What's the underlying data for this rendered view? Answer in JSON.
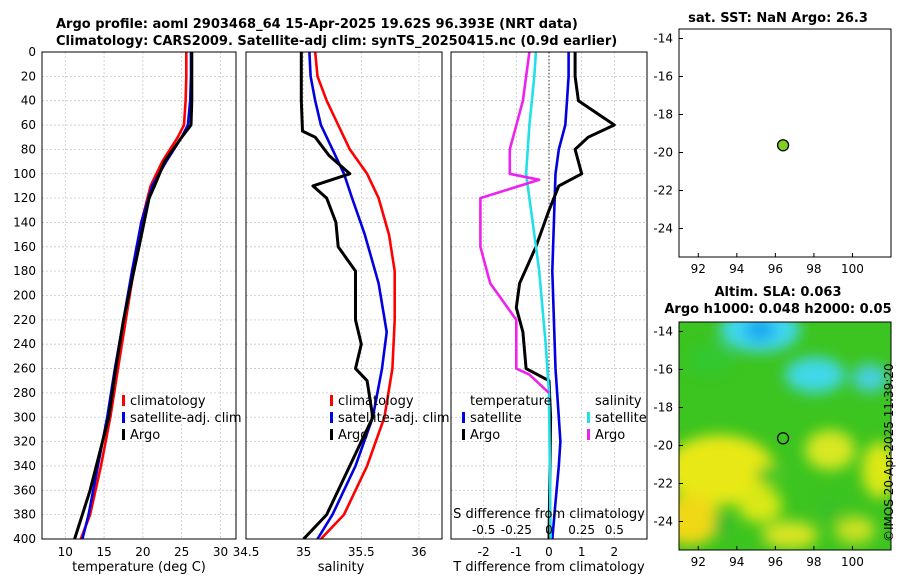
{
  "figure": {
    "title_line1": "Argo profile: aoml 2903468_64 15-Apr-2025 19.62S 96.393E (NRT data)",
    "title_line2": "Climatology: CARS2009. Satellite-adj clim: synTS_20250415.nc (0.9d earlier)",
    "timestamp": "©IMOS 20-Apr-2025 11:39:20"
  },
  "colors": {
    "climatology": "#ff0000",
    "satellite": "#0000e0",
    "argo": "#000000",
    "sal_satellite": "#22e0e8",
    "sal_argo": "#ee22ee",
    "marker": "#80d020",
    "grid": "#c8c8c8"
  },
  "chart_data": [
    {
      "id": "temperature",
      "type": "line",
      "xlabel": "temperature (deg C)",
      "ylabel": "",
      "xlim": [
        7,
        32
      ],
      "xticks": [
        10,
        15,
        20,
        25,
        30
      ],
      "ylim": [
        400,
        0
      ],
      "yticks": [
        0,
        20,
        40,
        60,
        80,
        100,
        120,
        140,
        160,
        180,
        200,
        220,
        240,
        260,
        280,
        300,
        320,
        340,
        360,
        380,
        400
      ],
      "legend": [
        "climatology",
        "satellite-adj. clim",
        "Argo"
      ],
      "series": [
        {
          "name": "climatology",
          "color_key": "climatology",
          "x": [
            25.6,
            25.6,
            25.5,
            25.3,
            24.5,
            22.5,
            21.0,
            19.8,
            18.8,
            17.8,
            16.8,
            15.8,
            14.6,
            13.2,
            12.0
          ],
          "y": [
            0,
            20,
            40,
            60,
            70,
            90,
            110,
            140,
            180,
            220,
            260,
            300,
            340,
            380,
            400
          ]
        },
        {
          "name": "satellite-adj. clim",
          "color_key": "satellite",
          "x": [
            26.2,
            26.2,
            26.1,
            25.8,
            25.0,
            23.0,
            21.2,
            19.8,
            18.6,
            17.5,
            16.4,
            15.4,
            14.2,
            13.0,
            12.2
          ],
          "y": [
            0,
            20,
            40,
            60,
            70,
            90,
            110,
            140,
            180,
            220,
            260,
            300,
            340,
            380,
            400
          ]
        },
        {
          "name": "Argo",
          "color_key": "argo",
          "x": [
            26.3,
            26.3,
            26.3,
            26.2,
            25.0,
            22.8,
            21.5,
            20.8,
            19.5,
            17.5,
            16.5,
            15.6,
            14.8,
            13.2,
            11.2
          ],
          "y": [
            0,
            20,
            40,
            60,
            70,
            90,
            110,
            120,
            160,
            220,
            260,
            300,
            320,
            360,
            400
          ]
        }
      ]
    },
    {
      "id": "salinity",
      "type": "line",
      "xlabel": "salinity",
      "xlim": [
        34.5,
        36.2
      ],
      "xticks": [
        34.5,
        35,
        35.5,
        36
      ],
      "xticklabels": [
        "34.5",
        "35",
        "35.5",
        "36"
      ],
      "ylim": [
        400,
        0
      ],
      "legend": [
        "climatology",
        "satellite-adj. clim",
        "Argo"
      ],
      "series": [
        {
          "name": "climatology",
          "color_key": "climatology",
          "x": [
            35.1,
            35.12,
            35.2,
            35.3,
            35.4,
            35.55,
            35.65,
            35.74,
            35.79,
            35.79,
            35.77,
            35.7,
            35.55,
            35.35,
            35.15
          ],
          "y": [
            0,
            20,
            40,
            60,
            80,
            100,
            120,
            150,
            180,
            220,
            260,
            300,
            340,
            380,
            400
          ]
        },
        {
          "name": "satellite-adj. clim",
          "color_key": "satellite",
          "x": [
            35.05,
            35.06,
            35.1,
            35.15,
            35.25,
            35.35,
            35.42,
            35.53,
            35.65,
            35.72,
            35.68,
            35.6,
            35.45,
            35.25,
            35.12
          ],
          "y": [
            0,
            20,
            40,
            60,
            80,
            100,
            120,
            150,
            190,
            230,
            260,
            300,
            340,
            380,
            400
          ]
        },
        {
          "name": "Argo",
          "color_key": "argo",
          "x": [
            34.98,
            34.98,
            34.98,
            34.99,
            35.1,
            35.22,
            35.4,
            35.08,
            35.2,
            35.28,
            35.3,
            35.45,
            35.45,
            35.45,
            35.5,
            35.45,
            35.55,
            35.6,
            35.4,
            35.2,
            35.0
          ],
          "y": [
            0,
            20,
            40,
            65,
            70,
            85,
            100,
            110,
            120,
            140,
            160,
            180,
            200,
            220,
            240,
            260,
            270,
            300,
            340,
            380,
            400
          ]
        }
      ]
    },
    {
      "id": "differences",
      "type": "line",
      "xlabel": "T difference from climatology",
      "xlabel_top": "S difference from climatology",
      "xlim": [
        -3,
        3
      ],
      "xticks": [
        -2,
        -1,
        0,
        1,
        2
      ],
      "xticks_top": [
        -0.5,
        -0.25,
        0,
        0.25,
        0.5
      ],
      "xticklabels_top": [
        "-0.5",
        "-0.25",
        "0",
        "0.25",
        "0.5"
      ],
      "ylim": [
        400,
        0
      ],
      "legend_left_title": "temperature",
      "legend_right_title": "salinity",
      "legend_left": [
        "satellite",
        "Argo"
      ],
      "legend_right": [
        "satellite",
        "Argo"
      ],
      "series": [
        {
          "name": "T satellite",
          "color_key": "satellite",
          "x": [
            0.6,
            0.6,
            0.55,
            0.5,
            0.3,
            0.2,
            0.15,
            0.1,
            0.15,
            0.2,
            0.3,
            0.35,
            0.3,
            0.2,
            0.1
          ],
          "y": [
            0,
            20,
            40,
            60,
            80,
            100,
            140,
            180,
            220,
            260,
            300,
            320,
            340,
            370,
            400
          ]
        },
        {
          "name": "T Argo",
          "color_key": "argo",
          "x": [
            0.8,
            0.8,
            0.9,
            2.0,
            1.2,
            0.8,
            1.0,
            0.3,
            0,
            -0.4,
            -0.9,
            -1.0,
            -0.8,
            -0.7,
            0,
            0.05,
            0
          ],
          "y": [
            0,
            20,
            40,
            60,
            70,
            80,
            100,
            110,
            130,
            160,
            190,
            210,
            230,
            260,
            270,
            300,
            400
          ]
        },
        {
          "name": "S satellite",
          "color_key": "sal_satellite",
          "x": [
            -0.4,
            -0.45,
            -0.6,
            -0.7,
            -0.5,
            -0.3,
            -0.1,
            0,
            0.05
          ],
          "y": [
            0,
            20,
            60,
            100,
            140,
            180,
            240,
            280,
            400
          ]
        },
        {
          "name": "S Argo",
          "color_key": "sal_argo",
          "x": [
            -0.6,
            -0.8,
            -1.2,
            -1.2,
            -0.3,
            -2.1,
            -2.1,
            -1.8,
            -1.0,
            -1.0,
            -0.6,
            0
          ],
          "y": [
            0,
            40,
            80,
            100,
            105,
            120,
            160,
            190,
            220,
            260,
            265,
            280
          ]
        }
      ]
    },
    {
      "id": "sst_map",
      "type": "scatter",
      "title": "sat. SST: NaN Argo: 26.3",
      "xlim": [
        91,
        102
      ],
      "xticks": [
        92,
        94,
        96,
        98,
        100
      ],
      "ylim": [
        -25.5,
        -13.5
      ],
      "yticks": [
        -14,
        -16,
        -18,
        -20,
        -22,
        -24
      ],
      "points": [
        {
          "x": 96.4,
          "y": -19.62
        }
      ]
    },
    {
      "id": "sla_map",
      "type": "heatmap",
      "title_line1": "Altim. SLA: 0.063",
      "title_line2": "Argo h1000: 0.048 h2000: 0.05",
      "xlim": [
        91,
        102
      ],
      "xticks": [
        92,
        94,
        96,
        98,
        100
      ],
      "ylim": [
        -25.5,
        -13.5
      ],
      "yticks": [
        -14,
        -16,
        -18,
        -20,
        -22,
        -24
      ],
      "points": [
        {
          "x": 96.4,
          "y": -19.62
        }
      ]
    }
  ]
}
